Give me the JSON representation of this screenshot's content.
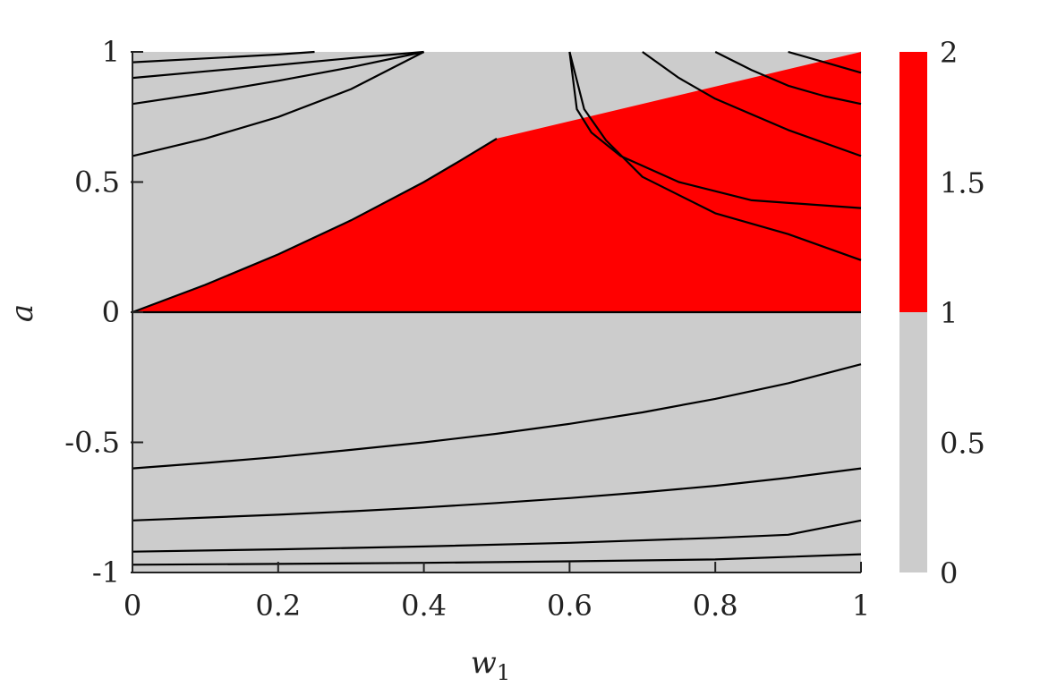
{
  "chart_data": {
    "type": "heatmap",
    "title": "",
    "xlabel": "w",
    "xlabel_subscript": "1",
    "ylabel": "a",
    "xlim": [
      0,
      1
    ],
    "ylim": [
      -1,
      1
    ],
    "x_ticks": [
      0,
      0.2,
      0.4,
      0.6,
      0.8,
      1
    ],
    "x_tick_labels": [
      "0",
      "0.2",
      "0.4",
      "0.6",
      "0.8",
      "1"
    ],
    "y_ticks": [
      -1,
      -0.5,
      0,
      0.5,
      1
    ],
    "y_tick_labels": [
      "-1",
      "-0.5",
      "0",
      "0.5",
      "1"
    ],
    "grid": false,
    "colorbar": {
      "range": [
        0,
        2
      ],
      "ticks": [
        0,
        0.5,
        1,
        1.5,
        2
      ],
      "tick_labels": [
        "0",
        "0.5",
        "1",
        "1.5",
        "2"
      ],
      "bands": [
        {
          "from": 0,
          "to": 1,
          "color": "#cccccc"
        },
        {
          "from": 1,
          "to": 2,
          "color": "#ff0000"
        }
      ]
    },
    "regions": [
      {
        "color": "#cccccc",
        "description": "value below 1"
      },
      {
        "color": "#ff0000",
        "description": "value above 1"
      }
    ],
    "colors": {
      "low": "#cccccc",
      "high": "#ff0000",
      "contour": "#000000",
      "axis": "#222222"
    },
    "region_boundary": [
      [
        0,
        0
      ],
      [
        0.1,
        0.105
      ],
      [
        0.2,
        0.222
      ],
      [
        0.3,
        0.353
      ],
      [
        0.4,
        0.5
      ],
      [
        0.45,
        0.582
      ],
      [
        0.5,
        0.667
      ]
    ],
    "contours": [
      [
        [
          0,
          0.6
        ],
        [
          0.1,
          0.667
        ],
        [
          0.2,
          0.75
        ],
        [
          0.3,
          0.857
        ],
        [
          0.4,
          1.0
        ]
      ],
      [
        [
          0,
          0.8
        ],
        [
          0.1,
          0.842
        ],
        [
          0.2,
          0.889
        ],
        [
          0.3,
          0.941
        ],
        [
          0.4,
          1.0
        ]
      ],
      [
        [
          0,
          0.9
        ],
        [
          0.1,
          0.925
        ],
        [
          0.2,
          0.95
        ],
        [
          0.3,
          0.976
        ],
        [
          0.4,
          1.0
        ]
      ],
      [
        [
          0,
          0.96
        ],
        [
          0.1,
          0.975
        ],
        [
          0.2,
          0.99
        ],
        [
          0.25,
          1.0
        ]
      ],
      [
        [
          0,
          0.0
        ],
        [
          1,
          0.0
        ]
      ],
      [
        [
          0,
          -0.6
        ],
        [
          0.1,
          -0.579
        ],
        [
          0.2,
          -0.556
        ],
        [
          0.3,
          -0.529
        ],
        [
          0.4,
          -0.5
        ],
        [
          0.5,
          -0.467
        ],
        [
          0.6,
          -0.429
        ],
        [
          0.7,
          -0.385
        ],
        [
          0.8,
          -0.333
        ],
        [
          0.9,
          -0.273
        ],
        [
          1,
          -0.2
        ]
      ],
      [
        [
          0,
          -0.8
        ],
        [
          0.1,
          -0.789
        ],
        [
          0.2,
          -0.778
        ],
        [
          0.3,
          -0.765
        ],
        [
          0.4,
          -0.75
        ],
        [
          0.5,
          -0.733
        ],
        [
          0.6,
          -0.714
        ],
        [
          0.7,
          -0.692
        ],
        [
          0.8,
          -0.667
        ],
        [
          0.9,
          -0.636
        ],
        [
          1,
          -0.6
        ]
      ],
      [
        [
          0,
          -0.92
        ],
        [
          0.2,
          -0.911
        ],
        [
          0.4,
          -0.9
        ],
        [
          0.6,
          -0.886
        ],
        [
          0.8,
          -0.867
        ],
        [
          0.9,
          -0.855
        ],
        [
          1,
          -0.8
        ]
      ],
      [
        [
          0,
          -0.97
        ],
        [
          0.2,
          -0.967
        ],
        [
          0.4,
          -0.963
        ],
        [
          0.6,
          -0.957
        ],
        [
          0.8,
          -0.95
        ],
        [
          1,
          -0.93
        ]
      ],
      [
        [
          0.6,
          1.0
        ],
        [
          0.61,
          0.78
        ],
        [
          0.63,
          0.69
        ],
        [
          0.67,
          0.6
        ],
        [
          0.75,
          0.5
        ],
        [
          0.85,
          0.43
        ],
        [
          1,
          0.4
        ]
      ],
      [
        [
          0.6,
          1.0
        ],
        [
          0.62,
          0.78
        ],
        [
          0.65,
          0.66
        ],
        [
          0.7,
          0.52
        ],
        [
          0.8,
          0.38
        ],
        [
          0.9,
          0.3
        ],
        [
          1,
          0.2
        ]
      ],
      [
        [
          0.7,
          1.0
        ],
        [
          0.75,
          0.9
        ],
        [
          0.8,
          0.82
        ],
        [
          0.9,
          0.7
        ],
        [
          1,
          0.6
        ]
      ],
      [
        [
          0.8,
          1.0
        ],
        [
          0.85,
          0.93
        ],
        [
          0.9,
          0.87
        ],
        [
          0.95,
          0.83
        ],
        [
          1,
          0.8
        ]
      ],
      [
        [
          0.9,
          1.0
        ],
        [
          0.95,
          0.96
        ],
        [
          1,
          0.92
        ]
      ]
    ]
  }
}
